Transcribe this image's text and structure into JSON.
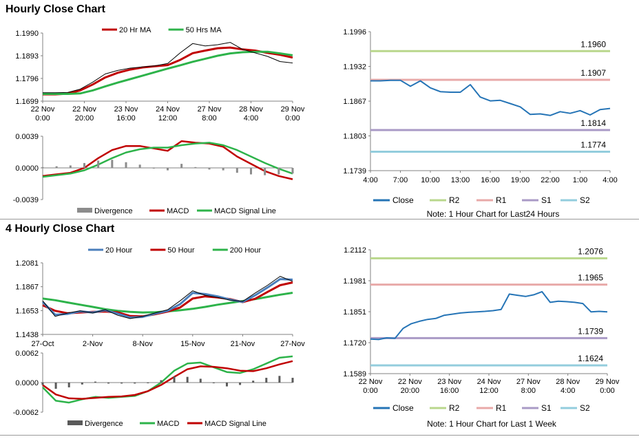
{
  "sections": [
    {
      "title": "Hourly Close Chart"
    },
    {
      "title": "4 Hourly Close Chart"
    }
  ],
  "chart_data": [
    {
      "type": "line",
      "legend": [
        "20 Hr MA",
        "50 Hrs MA"
      ],
      "legend_colors": [
        "#c00000",
        "#2db34a"
      ],
      "yticks": [
        "1.1990",
        "1.1893",
        "1.1796",
        "1.1699"
      ],
      "ylim": [
        1.1699,
        1.199
      ],
      "xticks": [
        "22 Nov\n0:00",
        "22 Nov\n20:00",
        "23 Nov\n16:00",
        "24 Nov\n12:00",
        "27 Nov\n8:00",
        "28 Nov\n4:00",
        "29 Nov\n0:00"
      ],
      "series": [
        {
          "name": "20 Hr MA",
          "color": "#c00000",
          "y": [
            1.1728,
            1.1728,
            1.1731,
            1.1745,
            1.177,
            1.18,
            1.182,
            1.1834,
            1.1843,
            1.1848,
            1.1853,
            1.1875,
            1.1904,
            1.1915,
            1.1925,
            1.1928,
            1.192,
            1.1915,
            1.1905,
            1.1897,
            1.1885
          ]
        },
        {
          "name": "50 Hrs MA",
          "color": "#2db34a",
          "y": [
            1.173,
            1.173,
            1.173,
            1.1732,
            1.1745,
            1.1762,
            1.1778,
            1.1793,
            1.1808,
            1.1823,
            1.1838,
            1.1852,
            1.1867,
            1.188,
            1.1893,
            1.1903,
            1.1908,
            1.191,
            1.191,
            1.1903,
            1.1895
          ]
        },
        {
          "name": "Close",
          "color": "#000000",
          "y": [
            1.1735,
            1.1735,
            1.1736,
            1.175,
            1.178,
            1.1815,
            1.183,
            1.184,
            1.1845,
            1.185,
            1.186,
            1.1905,
            1.1945,
            1.1935,
            1.194,
            1.195,
            1.192,
            1.1905,
            1.189,
            1.1868,
            1.1862
          ]
        }
      ]
    },
    {
      "type": "line",
      "legend": [
        "Divergence",
        "MACD",
        "MACD Signal Line"
      ],
      "legend_colors": [
        "#8c8c8c",
        "#c00000",
        "#2db34a"
      ],
      "yticks": [
        "0.0039",
        "0.0000",
        "-0.0039"
      ],
      "ylim": [
        -0.0039,
        0.0039
      ],
      "series": [
        {
          "name": "MACD",
          "color": "#c00000",
          "y": [
            -0.001,
            -0.0008,
            -0.0006,
            0.0,
            0.0012,
            0.0022,
            0.0027,
            0.0027,
            0.0024,
            0.0021,
            0.0033,
            0.0031,
            0.003,
            0.0026,
            0.0014,
            0.0005,
            -0.0004,
            -0.001,
            -0.0014
          ]
        },
        {
          "name": "MACD Signal Line",
          "color": "#2db34a",
          "y": [
            -0.0011,
            -0.0009,
            -0.0007,
            -0.0003,
            0.0004,
            0.0012,
            0.0019,
            0.0023,
            0.0025,
            0.0025,
            0.0028,
            0.003,
            0.0031,
            0.0028,
            0.0022,
            0.0014,
            0.0006,
            -0.0001,
            -0.0007
          ]
        },
        {
          "name": "Divergence",
          "color": "#8c8c8c",
          "y": [
            0.0001,
            0.0002,
            0.0003,
            0.0006,
            0.0009,
            0.001,
            0.0007,
            0.0004,
            0.0,
            -0.0003,
            0.0005,
            0.0001,
            -0.0002,
            -0.0003,
            -0.0006,
            -0.0008,
            -0.0009,
            -0.0008,
            -0.0007
          ]
        }
      ]
    },
    {
      "type": "line",
      "yticks": [
        "1.1996",
        "1.1932",
        "1.1867",
        "1.1803",
        "1.1739"
      ],
      "ylim": [
        1.1739,
        1.1996
      ],
      "xticks": [
        "4:00",
        "7:00",
        "10:00",
        "13:00",
        "16:00",
        "19:00",
        "22:00",
        "1:00",
        "4:00"
      ],
      "levels": [
        {
          "name": "R2",
          "value": 1.196,
          "label": "1.1960",
          "color": "#b9d78c"
        },
        {
          "name": "R1",
          "value": 1.1907,
          "label": "1.1907",
          "color": "#e8a9a8"
        },
        {
          "name": "S1",
          "value": 1.1814,
          "label": "1.1814",
          "color": "#a99ac6"
        },
        {
          "name": "S2",
          "value": 1.1774,
          "label": "1.1774",
          "color": "#93cddd"
        }
      ],
      "series": [
        {
          "name": "Close",
          "color": "#2574b6",
          "y": [
            1.1905,
            1.1905,
            1.1906,
            1.1906,
            1.1895,
            1.1905,
            1.1892,
            1.1885,
            1.1884,
            1.1884,
            1.1898,
            1.1875,
            1.1868,
            1.1869,
            1.1863,
            1.1857,
            1.1843,
            1.1844,
            1.1841,
            1.1848,
            1.1845,
            1.185,
            1.1842,
            1.1852,
            1.1854
          ]
        }
      ],
      "legend": [
        "Close",
        "R2",
        "R1",
        "S1",
        "S2"
      ],
      "note": "Note: 1 Hour Chart for Last24 Hours"
    },
    {
      "type": "line",
      "legend": [
        "20 Hour",
        "50 Hour",
        "200 Hour"
      ],
      "legend_colors": [
        "#4a7ebb",
        "#c00000",
        "#2db34a"
      ],
      "yticks": [
        "1.2081",
        "1.1867",
        "1.1653",
        "1.1438"
      ],
      "ylim": [
        1.1438,
        1.2081
      ],
      "xticks": [
        "27-Oct",
        "2-Nov",
        "8-Nov",
        "15-Nov",
        "21-Nov",
        "27-Nov"
      ],
      "series": [
        {
          "name": "200 Hour",
          "color": "#2db34a",
          "y": [
            1.176,
            1.1745,
            1.1725,
            1.1705,
            1.1685,
            1.1665,
            1.165,
            1.164,
            1.1635,
            1.1638,
            1.1645,
            1.1655,
            1.1668,
            1.1685,
            1.1705,
            1.1722,
            1.1738,
            1.1755,
            1.1775,
            1.1795,
            1.1812
          ]
        },
        {
          "name": "50 Hour",
          "color": "#c00000",
          "y": [
            1.17,
            1.165,
            1.1628,
            1.1635,
            1.164,
            1.1643,
            1.1636,
            1.1603,
            1.16,
            1.162,
            1.1643,
            1.168,
            1.176,
            1.178,
            1.177,
            1.1755,
            1.1728,
            1.1758,
            1.182,
            1.188,
            1.1905
          ]
        },
        {
          "name": "20 Hour",
          "color": "#4a7ebb",
          "y": [
            1.173,
            1.1615,
            1.1622,
            1.1645,
            1.1635,
            1.1655,
            1.1625,
            1.159,
            1.1595,
            1.1625,
            1.165,
            1.171,
            1.181,
            1.18,
            1.178,
            1.175,
            1.173,
            1.179,
            1.186,
            1.1935,
            1.193
          ]
        },
        {
          "name": "Close",
          "color": "#000000",
          "y": [
            1.174,
            1.16,
            1.163,
            1.165,
            1.163,
            1.166,
            1.161,
            1.158,
            1.16,
            1.163,
            1.166,
            1.174,
            1.183,
            1.179,
            1.177,
            1.1745,
            1.1735,
            1.181,
            1.188,
            1.196,
            1.1915
          ]
        }
      ]
    },
    {
      "type": "line",
      "legend": [
        "Divergence",
        "MACD",
        "MACD Signal Line"
      ],
      "legend_colors": [
        "#5a5a5a",
        "#2db34a",
        "#c00000"
      ],
      "yticks": [
        "0.0062",
        "0.0000",
        "-0.0062"
      ],
      "ylim": [
        -0.0062,
        0.0062
      ],
      "series": [
        {
          "name": "MACD",
          "color": "#2db34a",
          "y": [
            -0.001,
            -0.0038,
            -0.0042,
            -0.0035,
            -0.003,
            -0.0032,
            -0.003,
            -0.0028,
            -0.0018,
            0.0,
            0.0025,
            0.004,
            0.0042,
            0.0032,
            0.0022,
            0.002,
            0.0028,
            0.004,
            0.0052,
            0.0055
          ]
        },
        {
          "name": "MACD Signal Line",
          "color": "#c00000",
          "y": [
            -0.0005,
            -0.0025,
            -0.0033,
            -0.0034,
            -0.0032,
            -0.003,
            -0.0029,
            -0.0026,
            -0.0018,
            -0.0005,
            0.0012,
            0.0028,
            0.0034,
            0.0033,
            0.003,
            0.0025,
            0.0024,
            0.003,
            0.0038,
            0.0045
          ]
        },
        {
          "name": "Divergence",
          "color": "#5a5a5a",
          "y": [
            -0.0005,
            -0.0013,
            -0.001,
            -0.0004,
            0.0002,
            -0.0002,
            -0.0002,
            -0.0002,
            0.0,
            0.0005,
            0.0013,
            0.0012,
            0.0008,
            -0.0001,
            -0.0008,
            -0.0005,
            0.0004,
            0.001,
            0.0014,
            0.001
          ]
        }
      ]
    },
    {
      "type": "line",
      "yticks": [
        "1.2112",
        "1.1981",
        "1.1851",
        "1.1720",
        "1.1589"
      ],
      "ylim": [
        1.1589,
        1.2112
      ],
      "xticks": [
        "22 Nov\n0:00",
        "22 Nov\n20:00",
        "23 Nov\n16:00",
        "24 Nov\n12:00",
        "27 Nov\n8:00",
        "28 Nov\n4:00",
        "29 Nov\n0:00"
      ],
      "levels": [
        {
          "name": "R2",
          "value": 1.2076,
          "label": "1.2076",
          "color": "#b9d78c"
        },
        {
          "name": "R1",
          "value": 1.1965,
          "label": "1.1965",
          "color": "#e8a9a8"
        },
        {
          "name": "S1",
          "value": 1.1739,
          "label": "1.1739",
          "color": "#a99ac6"
        },
        {
          "name": "S2",
          "value": 1.1624,
          "label": "1.1624",
          "color": "#93cddd"
        }
      ],
      "series": [
        {
          "name": "Close",
          "color": "#2574b6",
          "y": [
            1.1735,
            1.1733,
            1.174,
            1.1738,
            1.178,
            1.18,
            1.181,
            1.1818,
            1.1822,
            1.1835,
            1.184,
            1.1845,
            1.1848,
            1.185,
            1.1852,
            1.1855,
            1.186,
            1.1925,
            1.192,
            1.1915,
            1.1922,
            1.1935,
            1.189,
            1.1895,
            1.1893,
            1.189,
            1.1885,
            1.185,
            1.1852,
            1.185
          ]
        }
      ],
      "legend": [
        "Close",
        "R2",
        "R1",
        "S1",
        "S2"
      ],
      "note": "Note: 1 Hour Chart for Last 1 Week"
    }
  ]
}
